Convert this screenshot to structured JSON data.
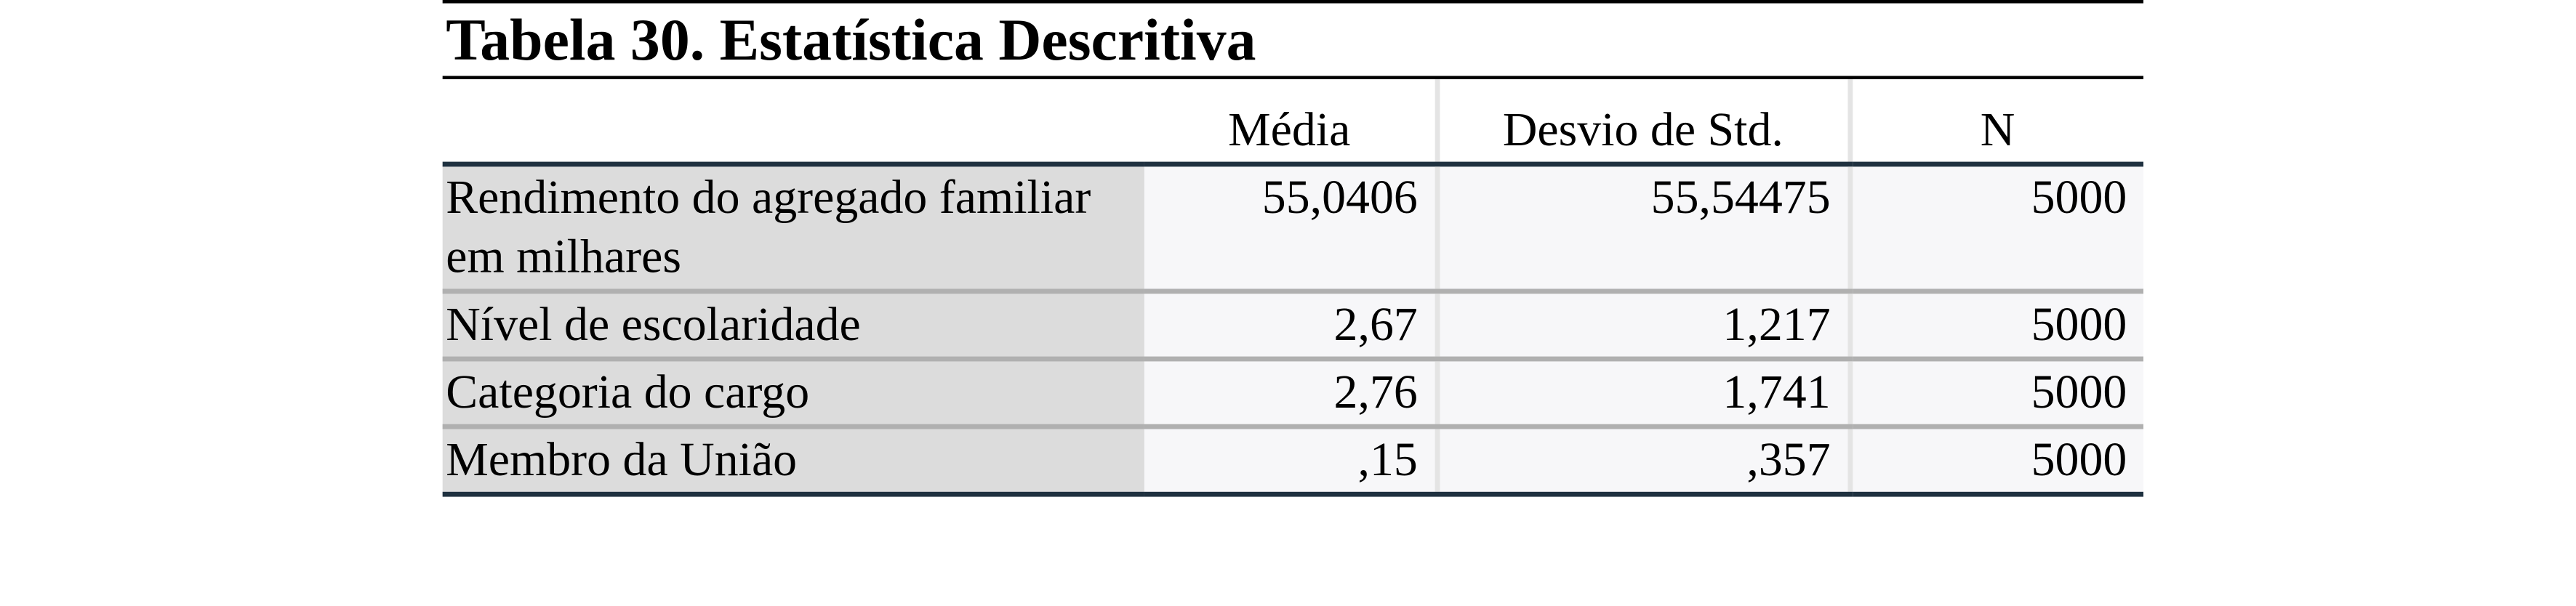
{
  "title": "Tabela 30. Estatística Descritiva",
  "table": {
    "columns": [
      "Média",
      "Desvio de Std.",
      "N"
    ],
    "rows": [
      [
        "Rendimento do agregado familiar em milhares",
        "55,0406",
        "55,54475",
        "5000"
      ],
      [
        "Nível de escolaridade",
        "2,67",
        "1,217",
        "5000"
      ],
      [
        "Categoria do cargo",
        "2,76",
        "1,741",
        "5000"
      ],
      [
        "Membro da União",
        ",15",
        ",357",
        "5000"
      ]
    ]
  }
}
